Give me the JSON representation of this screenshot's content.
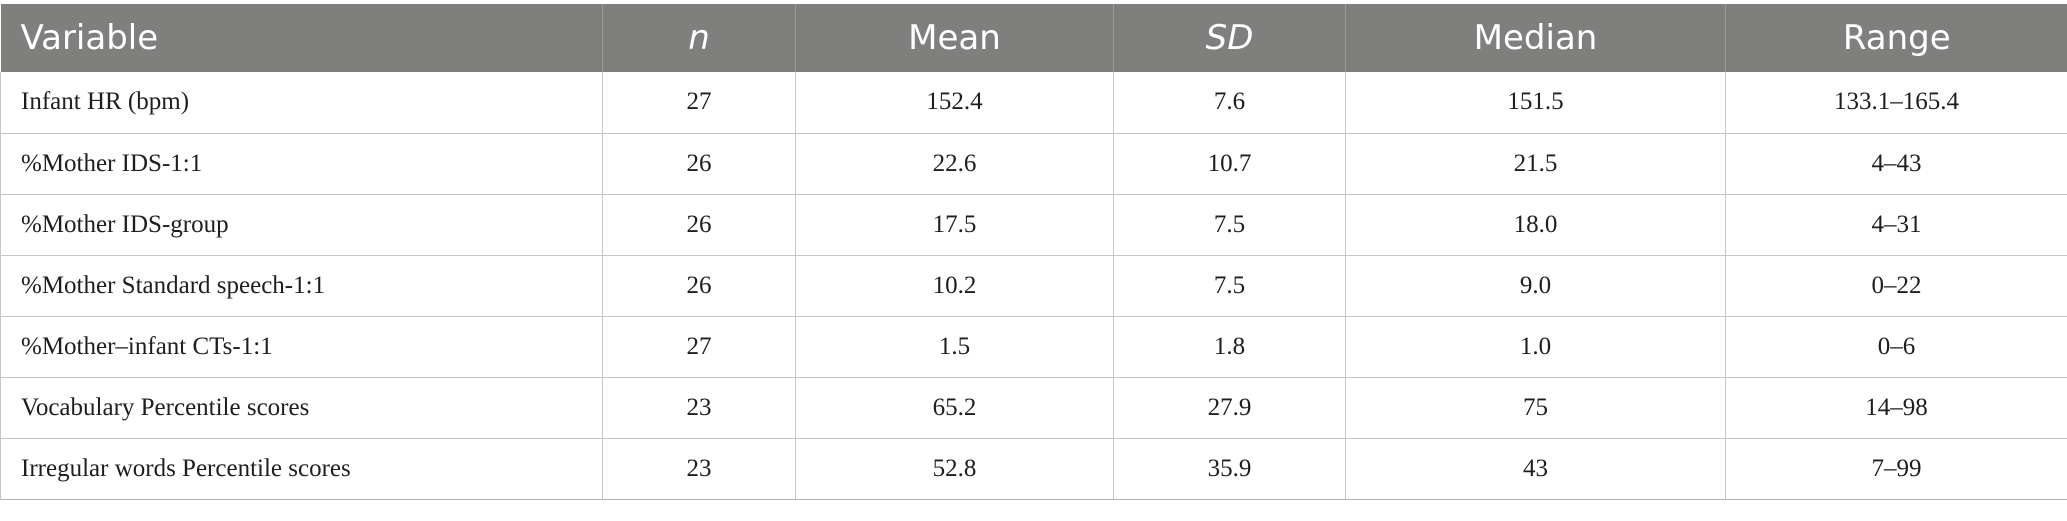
{
  "table": {
    "headers": [
      "Variable",
      "n",
      "Mean",
      "SD",
      "Median",
      "Range"
    ],
    "rows": [
      [
        "Infant HR (bpm)",
        "27",
        "152.4",
        "7.6",
        "151.5",
        "133.1–165.4"
      ],
      [
        "%Mother IDS-1:1",
        "26",
        "22.6",
        "10.7",
        "21.5",
        "4–43"
      ],
      [
        "%Mother IDS-group",
        "26",
        "17.5",
        "7.5",
        "18.0",
        "4–31"
      ],
      [
        "%Mother Standard speech-1:1",
        "26",
        "10.2",
        "7.5",
        "9.0",
        "0–22"
      ],
      [
        "%Mother–infant CTs-1:1",
        "27",
        "1.5",
        "1.8",
        "1.0",
        "0–6"
      ],
      [
        "Vocabulary Percentile scores",
        "23",
        "65.2",
        "27.9",
        "75",
        "14–98"
      ],
      [
        "Irregular words Percentile scores",
        "23",
        "52.8",
        "35.9",
        "43",
        "7–99"
      ]
    ]
  },
  "colors": {
    "header_background": "#7f7f7d",
    "header_text": "#ffffff",
    "grid_line": "#c6c6c6"
  }
}
